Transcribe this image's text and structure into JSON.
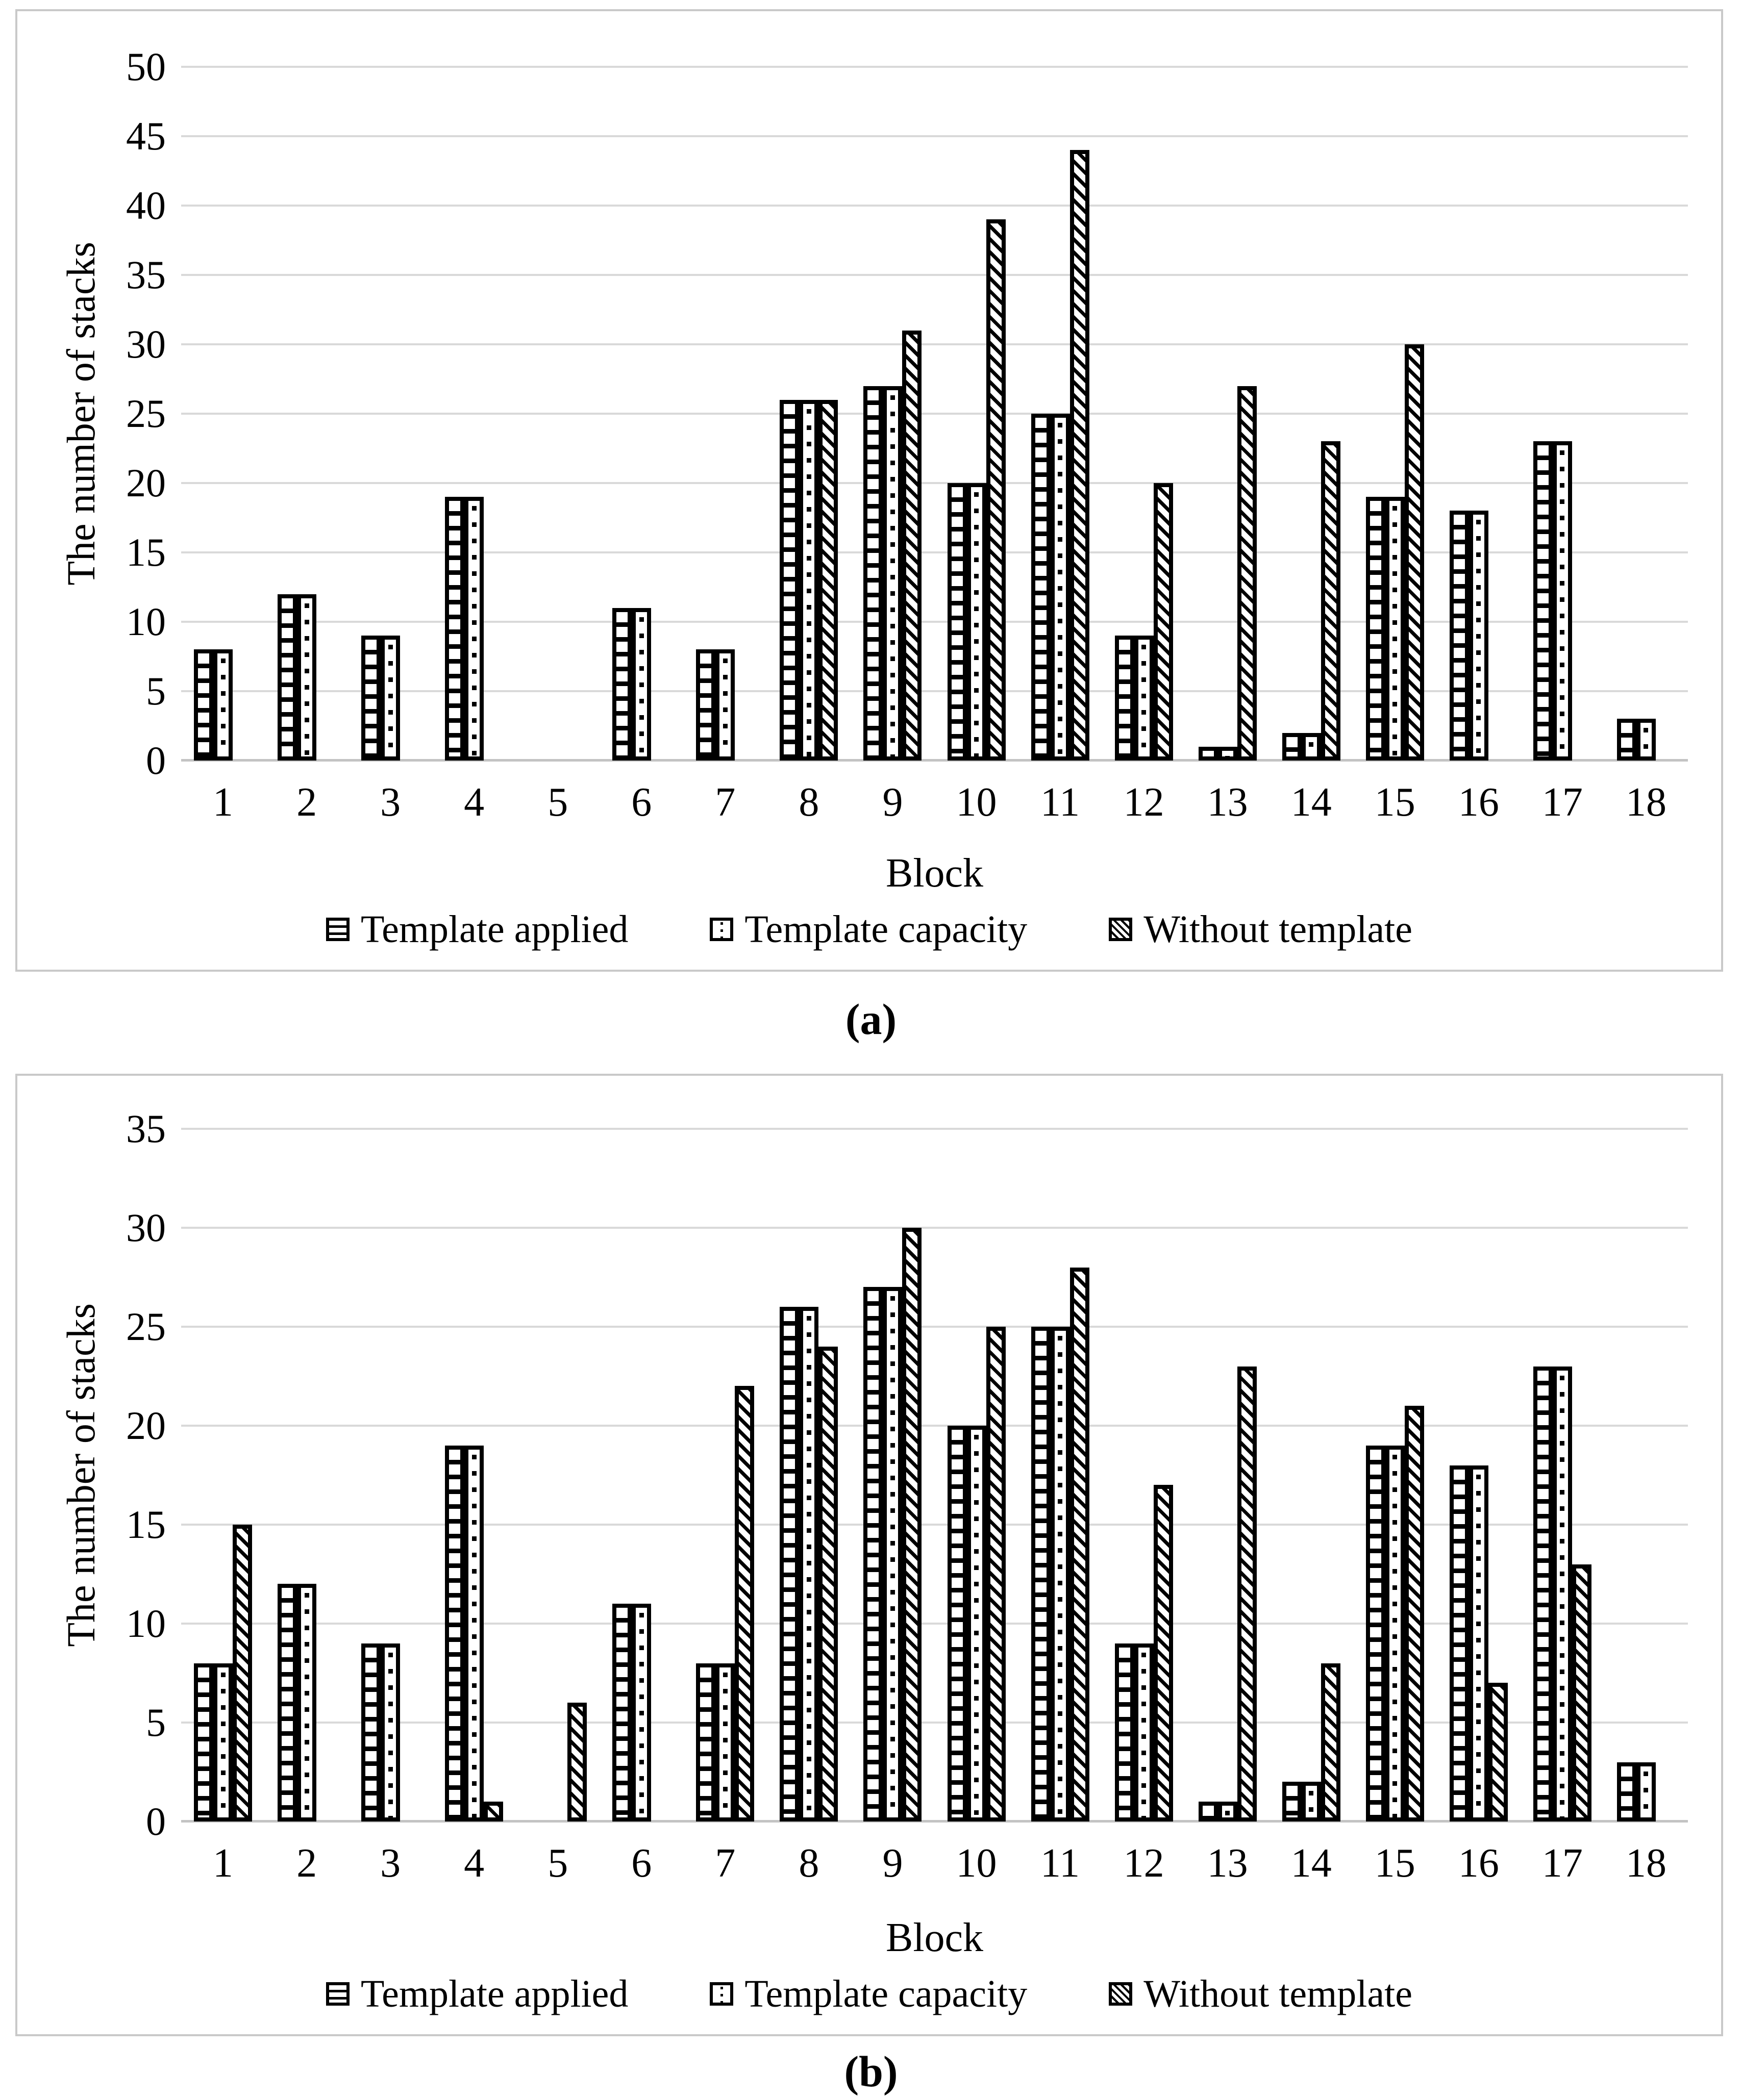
{
  "figure": {
    "caption_a": "(a)",
    "caption_b": "(b)"
  },
  "colors": {
    "gridline": "#d9d9d9",
    "axis_line": "#c3c3c3",
    "panel_border": "#c9c9c9",
    "bar_ink": "#000000",
    "bar_fill": "#ffffff"
  },
  "chart_data": [
    {
      "panel": "a",
      "type": "bar",
      "title": "",
      "xlabel": "Block",
      "ylabel": "The number of stacks",
      "ylim": [
        0,
        50
      ],
      "ytick_step": 5,
      "grid": true,
      "legend_position": "bottom",
      "caption": "(a)",
      "categories": [
        "1",
        "2",
        "3",
        "4",
        "5",
        "6",
        "7",
        "8",
        "9",
        "10",
        "11",
        "12",
        "13",
        "14",
        "15",
        "16",
        "17",
        "18"
      ],
      "series": [
        {
          "name": "Template applied",
          "pattern": "horizontal-rungs",
          "values": [
            8,
            12,
            9,
            19,
            0,
            11,
            8,
            26,
            27,
            20,
            25,
            9,
            1,
            2,
            19,
            18,
            23,
            3
          ]
        },
        {
          "name": "Template capacity",
          "pattern": "dotted-center",
          "values": [
            8,
            12,
            9,
            19,
            0,
            11,
            8,
            26,
            27,
            20,
            25,
            9,
            1,
            2,
            19,
            18,
            23,
            3
          ]
        },
        {
          "name": "Without template",
          "pattern": "diagonal-stripes",
          "values": [
            0,
            0,
            0,
            0,
            0,
            0,
            0,
            26,
            31,
            39,
            44,
            20,
            27,
            23,
            30,
            0,
            0,
            0
          ]
        }
      ]
    },
    {
      "panel": "b",
      "type": "bar",
      "title": "",
      "xlabel": "Block",
      "ylabel": "The number of stacks",
      "ylim": [
        0,
        35
      ],
      "ytick_step": 5,
      "grid": true,
      "legend_position": "bottom",
      "caption": "(b)",
      "categories": [
        "1",
        "2",
        "3",
        "4",
        "5",
        "6",
        "7",
        "8",
        "9",
        "10",
        "11",
        "12",
        "13",
        "14",
        "15",
        "16",
        "17",
        "18"
      ],
      "series": [
        {
          "name": "Template applied",
          "pattern": "horizontal-rungs",
          "values": [
            8,
            12,
            9,
            19,
            0,
            11,
            8,
            26,
            27,
            20,
            25,
            9,
            1,
            2,
            19,
            18,
            23,
            3
          ]
        },
        {
          "name": "Template capacity",
          "pattern": "dotted-center",
          "values": [
            8,
            12,
            9,
            19,
            0,
            11,
            8,
            26,
            27,
            20,
            25,
            9,
            1,
            2,
            19,
            18,
            23,
            3
          ]
        },
        {
          "name": "Without template",
          "pattern": "diagonal-stripes",
          "values": [
            15,
            0,
            0,
            1,
            6,
            0,
            22,
            24,
            30,
            25,
            28,
            17,
            23,
            8,
            21,
            7,
            13,
            0
          ]
        }
      ]
    }
  ]
}
